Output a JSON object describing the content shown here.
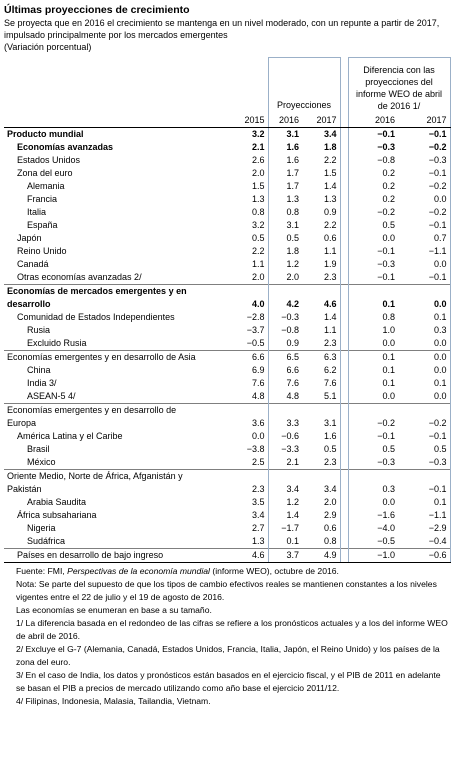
{
  "header": {
    "title": "Últimas proyecciones de crecimiento",
    "subtitle": "Se proyecta que en 2016 el crecimiento se mantenga en un nivel moderado, con un repunte a partir de 2017, impulsado principalmente por los mercados emergentes",
    "units": "(Variación porcentual)"
  },
  "table": {
    "group_headers": [
      "Proyecciones",
      "Diferencia con las proyecciones del informe WEO de abril de 2016 1/"
    ],
    "columns": [
      "2015",
      "2016",
      "2017",
      "2016",
      "2017"
    ],
    "rows": [
      {
        "label": "Producto mundial",
        "values": [
          "3.2",
          "3.1",
          "3.4",
          "−0.1",
          "−0.1"
        ]
      },
      {
        "label": "Economías avanzadas",
        "values": [
          "2.1",
          "1.6",
          "1.8",
          "−0.3",
          "−0.2"
        ]
      },
      {
        "label": "Estados Unidos",
        "values": [
          "2.6",
          "1.6",
          "2.2",
          "−0.8",
          "−0.3"
        ]
      },
      {
        "label": "Zona del euro",
        "values": [
          "2.0",
          "1.7",
          "1.5",
          "0.2",
          "−0.1"
        ]
      },
      {
        "label": "Alemania",
        "values": [
          "1.5",
          "1.7",
          "1.4",
          "0.2",
          "−0.2"
        ]
      },
      {
        "label": "Francia",
        "values": [
          "1.3",
          "1.3",
          "1.3",
          "0.2",
          "0.0"
        ]
      },
      {
        "label": "Italia",
        "values": [
          "0.8",
          "0.8",
          "0.9",
          "−0.2",
          "−0.2"
        ]
      },
      {
        "label": "España",
        "values": [
          "3.2",
          "3.1",
          "2.2",
          "0.5",
          "−0.1"
        ]
      },
      {
        "label": "Japón",
        "values": [
          "0.5",
          "0.5",
          "0.6",
          "0.0",
          "0.7"
        ]
      },
      {
        "label": "Reino Unido",
        "values": [
          "2.2",
          "1.8",
          "1.1",
          "−0.1",
          "−1.1"
        ]
      },
      {
        "label": "Canadá",
        "values": [
          "1.1",
          "1.2",
          "1.9",
          "−0.3",
          "0.0"
        ]
      },
      {
        "label": "Otras economías avanzadas 2/",
        "values": [
          "2.0",
          "2.0",
          "2.3",
          "−0.1",
          "−0.1"
        ]
      },
      {
        "label": [
          "Economías de mercados emergentes y en",
          "desarrollo"
        ],
        "values": [
          "4.0",
          "4.2",
          "4.6",
          "0.1",
          "0.0"
        ]
      },
      {
        "label": "Comunidad de Estados Independientes",
        "values": [
          "−2.8",
          "−0.3",
          "1.4",
          "0.8",
          "0.1"
        ]
      },
      {
        "label": "Rusia",
        "values": [
          "−3.7",
          "−0.8",
          "1.1",
          "1.0",
          "0.3"
        ]
      },
      {
        "label": "Excluido Rusia",
        "values": [
          "−0.5",
          "0.9",
          "2.3",
          "0.0",
          "0.0"
        ]
      },
      {
        "label": "Economías emergentes y en desarrollo de Asia",
        "values": [
          "6.6",
          "6.5",
          "6.3",
          "0.1",
          "0.0"
        ]
      },
      {
        "label": "China",
        "values": [
          "6.9",
          "6.6",
          "6.2",
          "0.1",
          "0.0"
        ]
      },
      {
        "label": "India 3/",
        "values": [
          "7.6",
          "7.6",
          "7.6",
          "0.1",
          "0.1"
        ]
      },
      {
        "label": "ASEAN-5 4/",
        "values": [
          "4.8",
          "4.8",
          "5.1",
          "0.0",
          "0.0"
        ]
      },
      {
        "label": [
          "Economías emergentes y en desarrollo de",
          "Europa"
        ],
        "values": [
          "3.6",
          "3.3",
          "3.1",
          "−0.2",
          "−0.2"
        ]
      },
      {
        "label": "América Latina y el Caribe",
        "values": [
          "0.0",
          "−0.6",
          "1.6",
          "−0.1",
          "−0.1"
        ]
      },
      {
        "label": "Brasil",
        "values": [
          "−3.8",
          "−3.3",
          "0.5",
          "0.5",
          "0.5"
        ]
      },
      {
        "label": "México",
        "values": [
          "2.5",
          "2.1",
          "2.3",
          "−0.3",
          "−0.3"
        ]
      },
      {
        "label": [
          "Oriente Medio, Norte de África, Afganistán y",
          "Pakistán"
        ],
        "values": [
          "2.3",
          "3.4",
          "3.4",
          "0.3",
          "−0.1"
        ]
      },
      {
        "label": "Arabia Saudita",
        "values": [
          "3.5",
          "1.2",
          "2.0",
          "0.0",
          "0.1"
        ]
      },
      {
        "label": "África subsahariana",
        "values": [
          "3.4",
          "1.4",
          "2.9",
          "−1.6",
          "−1.1"
        ]
      },
      {
        "label": "Nigeria",
        "values": [
          "2.7",
          "−1.7",
          "0.6",
          "−4.0",
          "−2.9"
        ]
      },
      {
        "label": "Sudáfrica",
        "values": [
          "1.3",
          "0.1",
          "0.8",
          "−0.5",
          "−0.4"
        ]
      },
      {
        "label": "Países en desarrollo de bajo ingreso",
        "values": [
          "4.6",
          "3.7",
          "4.9",
          "−1.0",
          "−0.6"
        ]
      }
    ]
  },
  "notes": {
    "source": [
      "Fuente: FMI, ",
      "Perspectivas de la economía mundial",
      " (informe WEO), octubre de 2016."
    ],
    "items": [
      "Nota: Se parte del supuesto de que los tipos de cambio efectivos reales se mantienen constantes a los niveles vigentes entre el 22 de julio y el 19 de agosto de 2016.",
      "Las economías se enumeran en base a su tamaño.",
      "1/ La diferencia basada en el redondeo de las cifras se refiere a los pronósticos actuales y a los del informe WEO de abril de 2016.",
      "2/ Excluye el G-7 (Alemania, Canadá, Estados Unidos, Francia, Italia, Japón, el Reino Unido) y los países de la zona del euro.",
      "3/ En el caso de India, los datos y pronósticos están basados en el ejercicio fiscal, y el PIB de 2011 en adelante se basan el PIB a precios de mercado utilizando como año base el ejercicio 2011/12.",
      "4/ Filipinas, Indonesia, Malasia, Tailandia, Vietnam."
    ]
  }
}
